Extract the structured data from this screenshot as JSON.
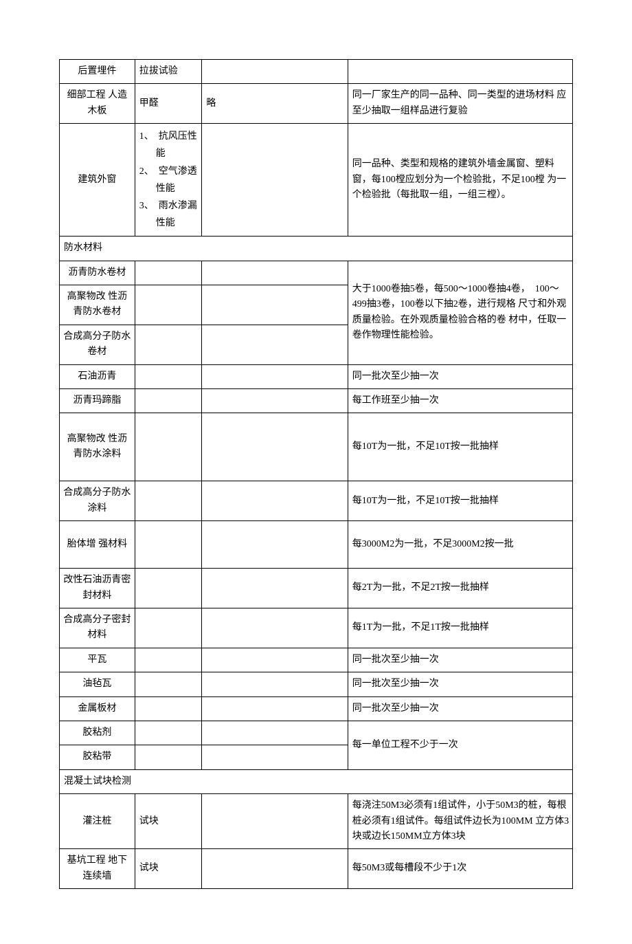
{
  "rows": [
    {
      "type": "row",
      "c1": "后置埋件",
      "c2": "拉拔试验",
      "c3": "",
      "c4": ""
    },
    {
      "type": "row",
      "c1": "细部工程 人造木板",
      "c2": "甲醛",
      "c3": "略",
      "c4": "同一厂家生产的同一品种、同一类型的进场材料 应至少抽取一组样品进行复验"
    },
    {
      "type": "row-list",
      "c1": "建筑外窗",
      "c2_items": [
        "1、　抗风压性能",
        "2、　空气渗透性能",
        "3、　雨水渗漏性能"
      ],
      "c3": "",
      "c4": "同一品种、类型和规格的建筑外墙金属窗、塑料 窗，每100樘应划分为一个检验批，不足100樘 为一个检验批（每批取一组，一组三樘）。"
    },
    {
      "type": "section",
      "label": "防水材料"
    },
    {
      "type": "row-span3",
      "rows_c1": [
        "沥青防水卷材",
        "高聚物改 性沥青防水卷材",
        "合成高分子防水 卷材"
      ],
      "c4": "大于1000卷抽5卷，每500〜1000卷抽4卷，　100〜499抽3卷，100卷以下抽2卷，进行规格 尺寸和外观质量检验。在外观质量检验合格的卷 材中，任取一卷作物理性能检验。"
    },
    {
      "type": "row",
      "c1": "石油沥青",
      "c2": "",
      "c3": "",
      "c4": "同一批次至少抽一次"
    },
    {
      "type": "row",
      "c1": "沥青玛蹄脂",
      "c2": "",
      "c3": "",
      "c4": "每工作班至少抽一次"
    },
    {
      "type": "row-tall",
      "c1": "高聚物改 性沥青防水涂料",
      "c2": "",
      "c3": "",
      "c4": "每10T为一批，不足10T按一批抽样"
    },
    {
      "type": "row",
      "c1": "合成高分子防水 涂料",
      "c2": "",
      "c3": "",
      "c4": "每10T为一批，不足10T按一批抽样"
    },
    {
      "type": "row-tall2",
      "c1": "胎体增 强材料",
      "c2": "",
      "c3": "",
      "c4": "每3000M2为一批，不足3000M2按一批"
    },
    {
      "type": "row",
      "c1": "改性石油沥青密 封材料",
      "c2": "",
      "c3": "",
      "c4": "每2T为一批，不足2T按一批抽样"
    },
    {
      "type": "row",
      "c1": "合成高分子密封 材料",
      "c2": "",
      "c3": "",
      "c4": "每1T为一批，不足1T按一批抽样"
    },
    {
      "type": "row",
      "c1": "平瓦",
      "c2": "",
      "c3": "",
      "c4": "同一批次至少抽一次"
    },
    {
      "type": "row",
      "c1": "油毡瓦",
      "c2": "",
      "c3": "",
      "c4": "同一批次至少抽一次"
    },
    {
      "type": "row",
      "c1": "金属板材",
      "c2": "",
      "c3": "",
      "c4": "同一批次至少抽一次"
    },
    {
      "type": "row-span2",
      "rows_c1": [
        "胶粘剂",
        "胶粘带"
      ],
      "c4": "每一单位工程不少于一次"
    },
    {
      "type": "section",
      "label": "混凝土试块检测"
    },
    {
      "type": "row",
      "c1": "灌注桩",
      "c2": "试块",
      "c3": "",
      "c4": "每浇注50M3必须有1组试件，小于50M3的桩，每根桩必须有1组试件。每组试件边长为100MM 立方体3块或边长150MM立方体3块"
    },
    {
      "type": "row",
      "c1": "基坑工程 地下连续墙",
      "c2": "试块",
      "c3": "",
      "c4": "每50M3或每槽段不少于1次"
    }
  ]
}
